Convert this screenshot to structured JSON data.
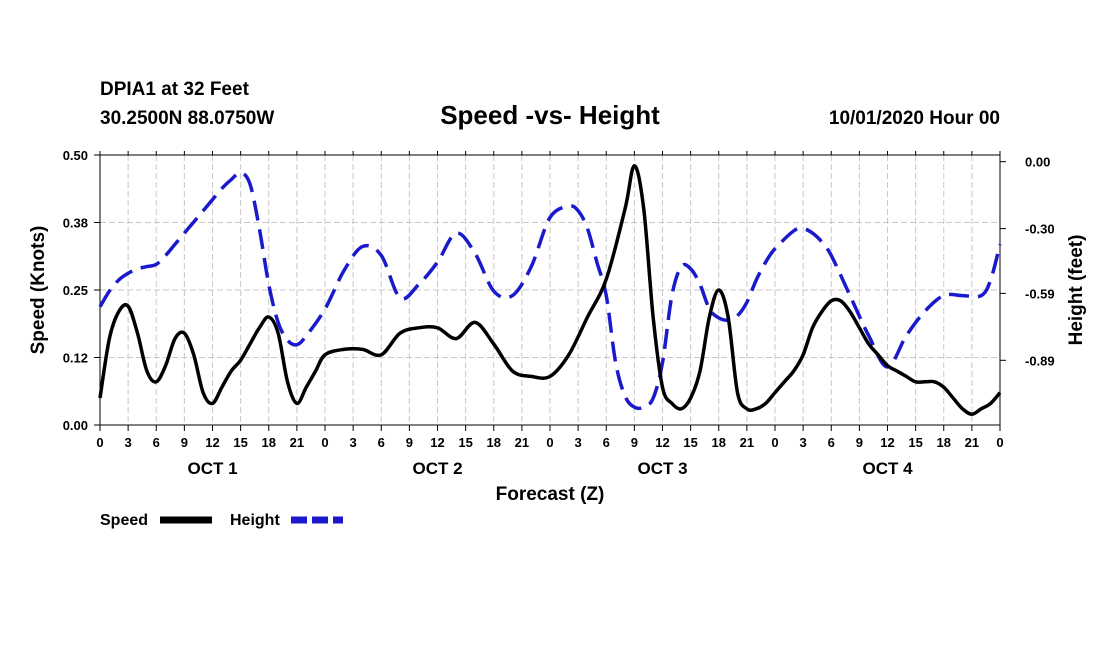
{
  "header": {
    "station": "DPIA1 at 32 Feet",
    "coords": "30.2500N 88.0750W",
    "title": "Speed -vs- Height",
    "date": "10/01/2020 Hour 00"
  },
  "chart_data": {
    "type": "line",
    "title": "Speed -vs- Height",
    "xlabel": "Forecast (Z)",
    "ylabel_left": "Speed (Knots)",
    "ylabel_right": "Height (feet)",
    "x_range_hours": [
      0,
      96
    ],
    "x_ticks": [
      {
        "hour": 0,
        "label": "0"
      },
      {
        "hour": 3,
        "label": "3"
      },
      {
        "hour": 6,
        "label": "6"
      },
      {
        "hour": 9,
        "label": "9"
      },
      {
        "hour": 12,
        "label": "12"
      },
      {
        "hour": 15,
        "label": "15"
      },
      {
        "hour": 18,
        "label": "18"
      },
      {
        "hour": 21,
        "label": "21"
      },
      {
        "hour": 24,
        "label": "0"
      },
      {
        "hour": 27,
        "label": "3"
      },
      {
        "hour": 30,
        "label": "6"
      },
      {
        "hour": 33,
        "label": "9"
      },
      {
        "hour": 36,
        "label": "12"
      },
      {
        "hour": 39,
        "label": "15"
      },
      {
        "hour": 42,
        "label": "18"
      },
      {
        "hour": 45,
        "label": "21"
      },
      {
        "hour": 48,
        "label": "0"
      },
      {
        "hour": 51,
        "label": "3"
      },
      {
        "hour": 54,
        "label": "6"
      },
      {
        "hour": 57,
        "label": "9"
      },
      {
        "hour": 60,
        "label": "12"
      },
      {
        "hour": 63,
        "label": "15"
      },
      {
        "hour": 66,
        "label": "18"
      },
      {
        "hour": 69,
        "label": "21"
      },
      {
        "hour": 72,
        "label": "0"
      },
      {
        "hour": 75,
        "label": "3"
      },
      {
        "hour": 78,
        "label": "6"
      },
      {
        "hour": 81,
        "label": "9"
      },
      {
        "hour": 84,
        "label": "12"
      },
      {
        "hour": 87,
        "label": "15"
      },
      {
        "hour": 90,
        "label": "18"
      },
      {
        "hour": 93,
        "label": "21"
      },
      {
        "hour": 96,
        "label": "0"
      }
    ],
    "day_labels": [
      {
        "hour": 12,
        "label": "OCT 1"
      },
      {
        "hour": 36,
        "label": "OCT 2"
      },
      {
        "hour": 60,
        "label": "OCT 3"
      },
      {
        "hour": 84,
        "label": "OCT 4"
      }
    ],
    "left_axis": {
      "range": [
        0,
        0.5
      ],
      "ticks": [
        {
          "value": 0.0,
          "label": "0.00"
        },
        {
          "value": 0.125,
          "label": "0.12"
        },
        {
          "value": 0.25,
          "label": "0.25"
        },
        {
          "value": 0.375,
          "label": "0.38"
        },
        {
          "value": 0.5,
          "label": "0.50"
        }
      ]
    },
    "right_axis": {
      "range": [
        -1.18,
        0.03
      ],
      "ticks": [
        {
          "value": 0.0,
          "label": "0.00"
        },
        {
          "value": -0.3,
          "label": "-0.30"
        },
        {
          "value": -0.59,
          "label": "-0.59"
        },
        {
          "value": -0.89,
          "label": "-0.89"
        }
      ]
    },
    "grid": true,
    "series": [
      {
        "name": "Speed",
        "axis": "left",
        "color": "#000000",
        "style": "solid",
        "x": [
          0,
          1,
          2,
          3,
          4,
          5,
          6,
          7,
          8,
          9,
          10,
          11,
          12,
          13,
          14,
          15,
          16,
          17,
          18,
          19,
          20,
          21,
          22,
          23,
          24,
          26,
          28,
          30,
          32,
          34,
          36,
          38,
          40,
          42,
          44,
          46,
          48,
          50,
          52,
          54,
          56,
          57,
          58,
          59,
          60,
          61,
          62,
          63,
          64,
          65,
          66,
          67,
          68,
          69,
          70,
          71,
          72,
          73,
          74,
          75,
          76,
          77,
          78,
          79,
          80,
          81,
          82,
          83,
          84,
          85,
          86,
          87,
          88,
          89,
          90,
          91,
          92,
          93,
          94,
          95,
          96
        ],
        "values": [
          0.05,
          0.16,
          0.21,
          0.22,
          0.17,
          0.1,
          0.08,
          0.11,
          0.16,
          0.17,
          0.13,
          0.06,
          0.04,
          0.07,
          0.1,
          0.12,
          0.15,
          0.18,
          0.2,
          0.17,
          0.08,
          0.04,
          0.07,
          0.1,
          0.13,
          0.14,
          0.14,
          0.13,
          0.17,
          0.18,
          0.18,
          0.16,
          0.19,
          0.15,
          0.1,
          0.09,
          0.09,
          0.13,
          0.2,
          0.27,
          0.4,
          0.48,
          0.4,
          0.2,
          0.07,
          0.04,
          0.03,
          0.05,
          0.1,
          0.2,
          0.25,
          0.2,
          0.06,
          0.03,
          0.03,
          0.04,
          0.06,
          0.08,
          0.1,
          0.13,
          0.18,
          0.21,
          0.23,
          0.23,
          0.21,
          0.18,
          0.15,
          0.13,
          0.11,
          0.1,
          0.09,
          0.08,
          0.08,
          0.08,
          0.07,
          0.05,
          0.03,
          0.02,
          0.03,
          0.04,
          0.06
        ]
      },
      {
        "name": "Height",
        "axis": "right",
        "color": "#1a1acc",
        "style": "dashed",
        "x": [
          0,
          1,
          2,
          3,
          4,
          5,
          6,
          7,
          8,
          9,
          10,
          11,
          12,
          13,
          14,
          15,
          16,
          17,
          18,
          19,
          20,
          21,
          22,
          24,
          26,
          28,
          30,
          32,
          34,
          36,
          38,
          40,
          42,
          44,
          46,
          48,
          50,
          51,
          52,
          53,
          54,
          55,
          56,
          57,
          58,
          59,
          60,
          61,
          62,
          63,
          64,
          65,
          66,
          67,
          68,
          69,
          70,
          71,
          72,
          74,
          75,
          76,
          77,
          78,
          80,
          82,
          84,
          86,
          88,
          90,
          92,
          94,
          95,
          96
        ],
        "values": [
          -0.65,
          -0.58,
          -0.53,
          -0.5,
          -0.48,
          -0.47,
          -0.46,
          -0.42,
          -0.37,
          -0.32,
          -0.27,
          -0.22,
          -0.17,
          -0.12,
          -0.08,
          -0.05,
          -0.1,
          -0.3,
          -0.55,
          -0.72,
          -0.8,
          -0.82,
          -0.78,
          -0.66,
          -0.49,
          -0.38,
          -0.42,
          -0.61,
          -0.55,
          -0.45,
          -0.32,
          -0.41,
          -0.58,
          -0.6,
          -0.47,
          -0.25,
          -0.2,
          -0.22,
          -0.3,
          -0.45,
          -0.6,
          -0.9,
          -1.05,
          -1.1,
          -1.1,
          -1.06,
          -0.9,
          -0.6,
          -0.47,
          -0.48,
          -0.55,
          -0.66,
          -0.7,
          -0.71,
          -0.69,
          -0.63,
          -0.53,
          -0.45,
          -0.39,
          -0.31,
          -0.3,
          -0.32,
          -0.36,
          -0.42,
          -0.6,
          -0.78,
          -0.92,
          -0.78,
          -0.67,
          -0.6,
          -0.6,
          -0.6,
          -0.53,
          -0.37
        ]
      }
    ],
    "legend": [
      {
        "label": "Speed",
        "color": "#000000",
        "style": "solid"
      },
      {
        "label": "Height",
        "color": "#1a1acc",
        "style": "dashed"
      }
    ]
  }
}
